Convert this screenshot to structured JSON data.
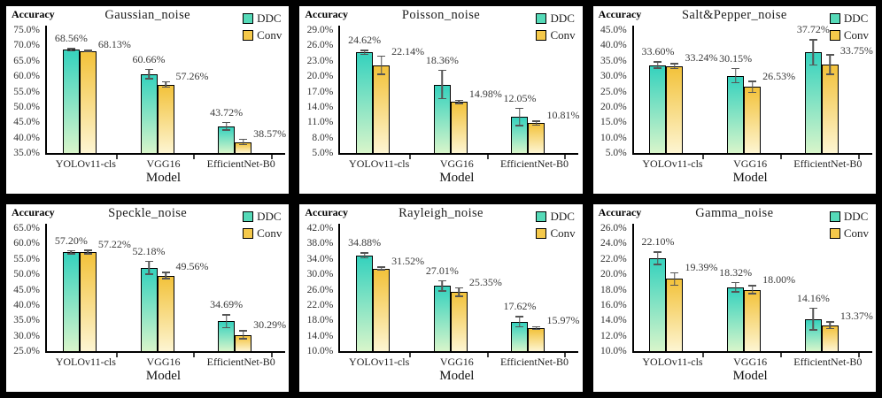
{
  "figure": {
    "background": "#000000",
    "panel_background": "#ffffff",
    "ylabel": "Accuracy",
    "xlabel": "Model",
    "error_bar_color": "#555555",
    "legend": {
      "position": "top-right",
      "items": [
        {
          "label": "DDC",
          "color": "#55dab8",
          "gradient_top": "#3bd3be",
          "gradient_bottom": "#d8f5ca"
        },
        {
          "label": "Conv",
          "color": "#f5c94b",
          "gradient_top": "#f3c440",
          "gradient_bottom": "#fdf5d2"
        }
      ]
    }
  },
  "chart_data": [
    {
      "type": "bar",
      "title": "Gaussian_noise",
      "xlabel": "Model",
      "ylabel": "Accuracy",
      "grid": false,
      "legend_position": "top-right",
      "categories": [
        "YOLOv11-cls",
        "VGG16",
        "EfficientNet-B0"
      ],
      "ylim": [
        35,
        75
      ],
      "ystep": 5,
      "yticks": [
        "75.0%",
        "70.0%",
        "65.0%",
        "60.0%",
        "55.0%",
        "50.0%",
        "45.0%",
        "40.0%",
        "35.0%"
      ],
      "series": [
        {
          "name": "DDC",
          "values": [
            68.56,
            60.66,
            43.72
          ],
          "labels": [
            "68.56%",
            "60.66%",
            "43.72%"
          ],
          "errors": [
            0.6,
            1.7,
            1.4
          ]
        },
        {
          "name": "Conv",
          "values": [
            68.13,
            57.26,
            38.57
          ],
          "labels": [
            "68.13%",
            "57.26%",
            "38.57%"
          ],
          "errors": [
            0.4,
            1.1,
            1.1
          ]
        }
      ]
    },
    {
      "type": "bar",
      "title": "Poisson_noise",
      "xlabel": "Model",
      "ylabel": "Accuracy",
      "grid": false,
      "legend_position": "top-right",
      "categories": [
        "YOLOv11-cls",
        "VGG16",
        "EfficientNet-B0"
      ],
      "ylim": [
        5,
        29
      ],
      "ystep": 3,
      "yticks": [
        "29.0%",
        "26.0%",
        "23.0%",
        "20.0%",
        "17.0%",
        "14.0%",
        "11.0%",
        "8.0%",
        "5.0%"
      ],
      "series": [
        {
          "name": "DDC",
          "values": [
            24.62,
            18.36,
            12.05
          ],
          "labels": [
            "24.62%",
            "18.36%",
            "12.05%"
          ],
          "errors": [
            0.5,
            2.9,
            1.8
          ]
        },
        {
          "name": "Conv",
          "values": [
            22.14,
            14.98,
            10.81
          ],
          "labels": [
            "22.14%",
            "14.98%",
            "10.81%"
          ],
          "errors": [
            1.9,
            0.4,
            0.5
          ]
        }
      ]
    },
    {
      "type": "bar",
      "title": "Salt&Pepper_noise",
      "xlabel": "Model",
      "ylabel": "Accuracy",
      "grid": false,
      "legend_position": "top-right",
      "categories": [
        "YOLOv11-cls",
        "VGG16",
        "EfficientNet-B0"
      ],
      "ylim": [
        5,
        45
      ],
      "ystep": 5,
      "yticks": [
        "45.0%",
        "40.0%",
        "35.0%",
        "30.0%",
        "25.0%",
        "20.0%",
        "15.0%",
        "10.0%",
        "5.0%"
      ],
      "series": [
        {
          "name": "DDC",
          "values": [
            33.6,
            30.15,
            37.72
          ],
          "labels": [
            "33.60%",
            "30.15%",
            "37.72%"
          ],
          "errors": [
            1.2,
            2.5,
            4.3
          ]
        },
        {
          "name": "Conv",
          "values": [
            33.24,
            26.53,
            33.75
          ],
          "labels": [
            "33.24%",
            "26.53%",
            "33.75%"
          ],
          "errors": [
            1.0,
            2.0,
            3.4
          ]
        }
      ]
    },
    {
      "type": "bar",
      "title": "Speckle_noise",
      "xlabel": "Model",
      "ylabel": "Accuracy",
      "grid": false,
      "legend_position": "top-right",
      "categories": [
        "YOLOv11-cls",
        "VGG16",
        "EfficientNet-B0"
      ],
      "ylim": [
        25,
        65
      ],
      "ystep": 5,
      "yticks": [
        "65.0%",
        "60.0%",
        "55.0%",
        "50.0%",
        "45.0%",
        "40.0%",
        "35.0%",
        "30.0%",
        "25.0%"
      ],
      "series": [
        {
          "name": "DDC",
          "values": [
            57.2,
            52.18,
            34.69
          ],
          "labels": [
            "57.20%",
            "52.18%",
            "34.69%"
          ],
          "errors": [
            0.7,
            2.3,
            2.3
          ]
        },
        {
          "name": "Conv",
          "values": [
            57.22,
            49.56,
            30.29
          ],
          "labels": [
            "57.22%",
            "49.56%",
            "30.29%"
          ],
          "errors": [
            0.8,
            1.2,
            1.5
          ]
        }
      ]
    },
    {
      "type": "bar",
      "title": "Rayleigh_noise",
      "xlabel": "Model",
      "ylabel": "Accuracy",
      "grid": false,
      "legend_position": "top-right",
      "categories": [
        "YOLOv11-cls",
        "VGG16",
        "EfficientNet-B0"
      ],
      "ylim": [
        10,
        42
      ],
      "ystep": 4,
      "yticks": [
        "42.0%",
        "38.0%",
        "34.0%",
        "30.0%",
        "26.0%",
        "22.0%",
        "18.0%",
        "14.0%",
        "10.0%"
      ],
      "series": [
        {
          "name": "DDC",
          "values": [
            34.88,
            27.01,
            17.62
          ],
          "labels": [
            "34.88%",
            "27.01%",
            "17.62%"
          ],
          "errors": [
            0.8,
            1.5,
            1.5
          ]
        },
        {
          "name": "Conv",
          "values": [
            31.52,
            25.35,
            15.97
          ],
          "labels": [
            "31.52%",
            "25.35%",
            "15.97%"
          ],
          "errors": [
            0.5,
            1.3,
            0.5
          ]
        }
      ]
    },
    {
      "type": "bar",
      "title": "Gamma_noise",
      "xlabel": "Model",
      "ylabel": "Accuracy",
      "grid": false,
      "legend_position": "top-right",
      "categories": [
        "YOLOv11-cls",
        "VGG16",
        "EfficientNet-B0"
      ],
      "ylim": [
        10,
        26
      ],
      "ystep": 2,
      "yticks": [
        "26.0%",
        "24.0%",
        "22.0%",
        "20.0%",
        "18.0%",
        "16.0%",
        "14.0%",
        "12.0%",
        "10.0%"
      ],
      "series": [
        {
          "name": "DDC",
          "values": [
            22.1,
            18.32,
            14.16
          ],
          "labels": [
            "22.10%",
            "18.32%",
            "14.16%"
          ],
          "errors": [
            0.9,
            0.7,
            1.5
          ]
        },
        {
          "name": "Conv",
          "values": [
            19.39,
            18.0,
            13.37
          ],
          "labels": [
            "19.39%",
            "18.00%",
            "13.37%"
          ],
          "errors": [
            0.9,
            0.6,
            0.5
          ]
        }
      ]
    }
  ]
}
